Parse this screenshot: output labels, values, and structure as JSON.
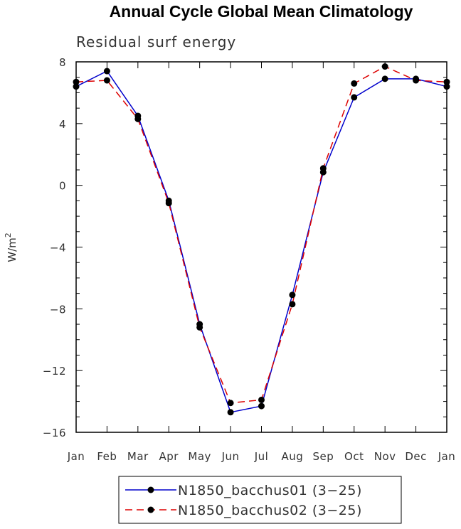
{
  "chart_data": {
    "type": "line",
    "title": "Annual Cycle Global Mean Climatology",
    "subtitle": "Residual surf energy",
    "xlabel": "",
    "ylabel": "W/m",
    "ylabel_sup": "2",
    "categories": [
      "Jan",
      "Feb",
      "Mar",
      "Apr",
      "May",
      "Jun",
      "Jul",
      "Aug",
      "Sep",
      "Oct",
      "Nov",
      "Dec",
      "Jan"
    ],
    "yticks": [
      "8",
      "4",
      "0",
      "−4",
      "−8",
      "−12",
      "−16"
    ],
    "ytick_values": [
      8,
      4,
      0,
      -4,
      -8,
      -12,
      -16
    ],
    "ylim": [
      -16,
      8
    ],
    "series": [
      {
        "name": "N1850_bacchus01 (3−25)",
        "color": "#0000cc",
        "dash": "solid",
        "values": [
          6.4,
          7.4,
          4.5,
          -1.0,
          -9.0,
          -14.7,
          -14.3,
          -7.1,
          0.85,
          5.7,
          6.9,
          6.9,
          6.4
        ]
      },
      {
        "name": "N1850_bacchus02 (3−25)",
        "color": "#dd0000",
        "dash": "dashed",
        "values": [
          6.7,
          6.8,
          4.3,
          -1.15,
          -9.2,
          -14.1,
          -13.9,
          -7.7,
          1.1,
          6.6,
          7.7,
          6.8,
          6.7
        ]
      }
    ],
    "legend_position": "bottom"
  }
}
